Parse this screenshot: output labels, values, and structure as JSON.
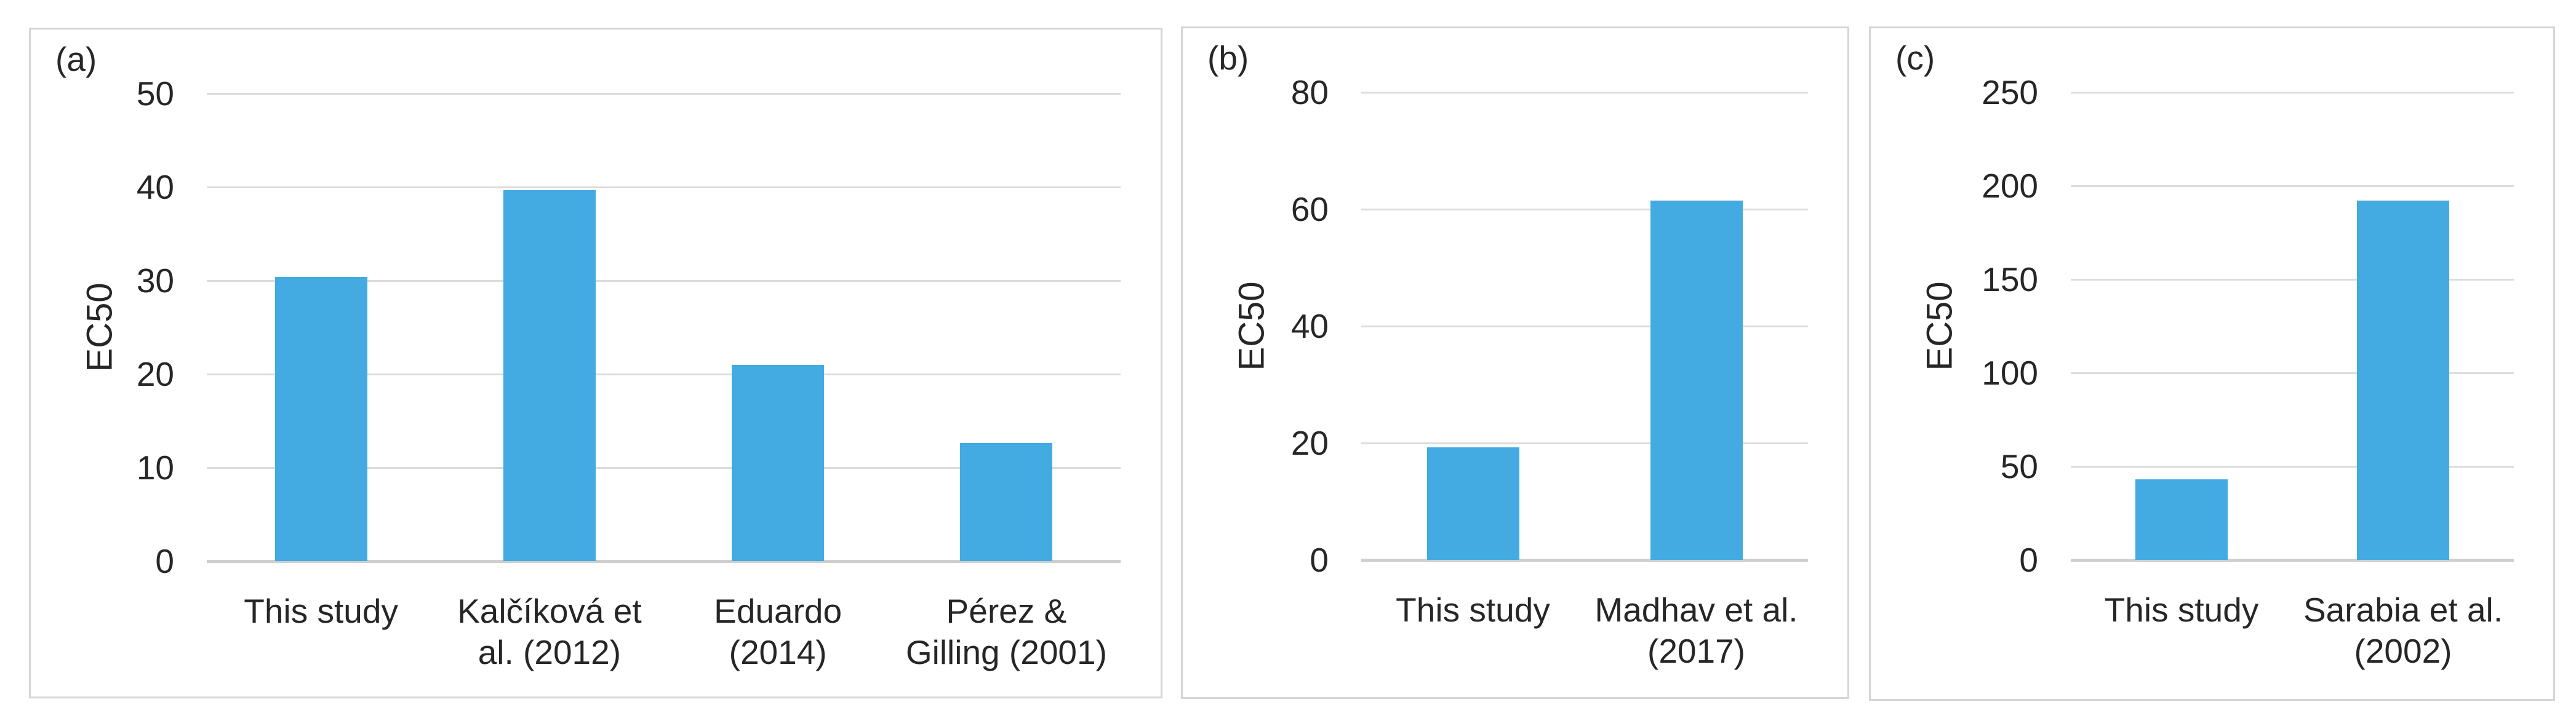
{
  "figure": {
    "background": "#FFFFFF",
    "panel_border_color": "#D5D5D5",
    "gridline_color": "#DCDCDC",
    "axis_line_color": "#CFCFCF",
    "bar_color": "#43AAE2",
    "text_color": "#262626"
  },
  "chart_data": [
    {
      "type": "bar",
      "panel_label": "(a)",
      "title": "",
      "xlabel": "",
      "ylabel": "EC50",
      "categories": [
        "This study",
        "Kalčíková et al. (2012)",
        "Eduardo (2014)",
        "Pérez & Gilling (2001)"
      ],
      "values": [
        30.4,
        39.7,
        21.0,
        12.6
      ],
      "ylim": [
        0,
        50
      ],
      "yticks": [
        0,
        10,
        20,
        30,
        40,
        50
      ],
      "grid": true,
      "legend": false
    },
    {
      "type": "bar",
      "panel_label": "(b)",
      "title": "",
      "xlabel": "",
      "ylabel": "EC50",
      "categories": [
        "This study",
        "Madhav et al. (2017)"
      ],
      "values": [
        19.3,
        61.5
      ],
      "ylim": [
        0,
        80
      ],
      "yticks": [
        0,
        20,
        40,
        60,
        80
      ],
      "grid": true,
      "legend": false
    },
    {
      "type": "bar",
      "panel_label": "(c)",
      "title": "",
      "xlabel": "",
      "ylabel": "EC50",
      "categories": [
        "This study",
        "Sarabia et al. (2002)"
      ],
      "values": [
        43,
        192
      ],
      "ylim": [
        0,
        250
      ],
      "yticks": [
        0,
        50,
        100,
        150,
        200,
        250
      ],
      "grid": true,
      "legend": false
    }
  ]
}
